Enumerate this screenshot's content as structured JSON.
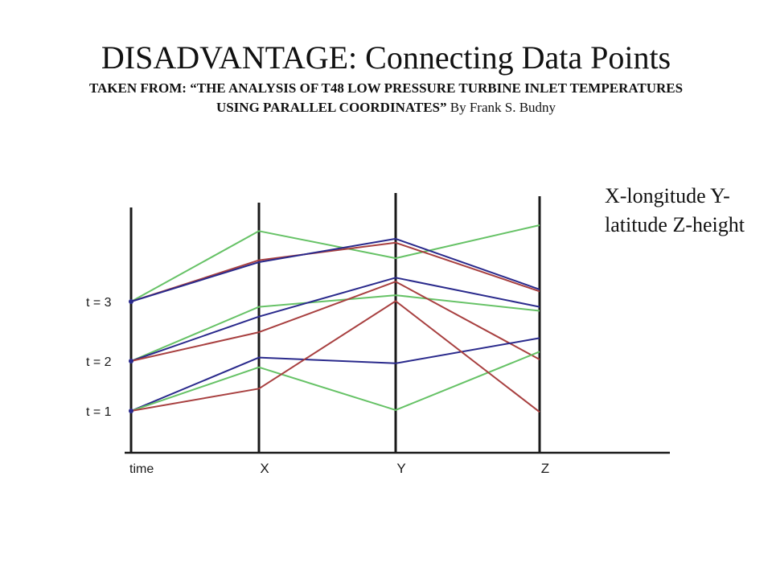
{
  "title": "DISADVANTAGE: Connecting Data Points",
  "source": {
    "prefix": "TAKEN FROM: ",
    "quoted_title": "“THE ANALYSIS OF T48 LOW PRESSURE TURBINE INLET TEMPERATURES USING PARALLEL COORDINATES”",
    "byline": " By Frank S. Budny"
  },
  "legend_text": "X-longitude Y-latitude Z-height",
  "colors": {
    "axis": "#1a1a1a",
    "green": "#66c266",
    "red": "#a84040",
    "blue": "#2a2a8c"
  },
  "chart_data": {
    "type": "parallel-coordinates",
    "axes": [
      "time",
      "X",
      "Y",
      "Z"
    ],
    "time_ticks": [
      "t = 1",
      "t = 2",
      "t = 3"
    ],
    "value_range": [
      0,
      1
    ],
    "series": [
      {
        "color": "green",
        "time": 3,
        "values": [
          0.97,
          0.83,
          1.0
        ]
      },
      {
        "color": "red",
        "time": 3,
        "values": [
          0.82,
          0.91,
          0.66
        ]
      },
      {
        "color": "blue",
        "time": 3,
        "values": [
          0.81,
          0.93,
          0.67
        ]
      },
      {
        "color": "green",
        "time": 2,
        "values": [
          0.58,
          0.64,
          0.56
        ]
      },
      {
        "color": "blue",
        "time": 2,
        "values": [
          0.53,
          0.73,
          0.58
        ]
      },
      {
        "color": "red",
        "time": 2,
        "values": [
          0.45,
          0.71,
          0.31
        ]
      },
      {
        "color": "blue",
        "time": 1,
        "values": [
          0.32,
          0.29,
          0.42
        ]
      },
      {
        "color": "green",
        "time": 1,
        "values": [
          0.27,
          0.05,
          0.35
        ]
      },
      {
        "color": "red",
        "time": 1,
        "values": [
          0.16,
          0.61,
          0.04
        ]
      }
    ]
  }
}
